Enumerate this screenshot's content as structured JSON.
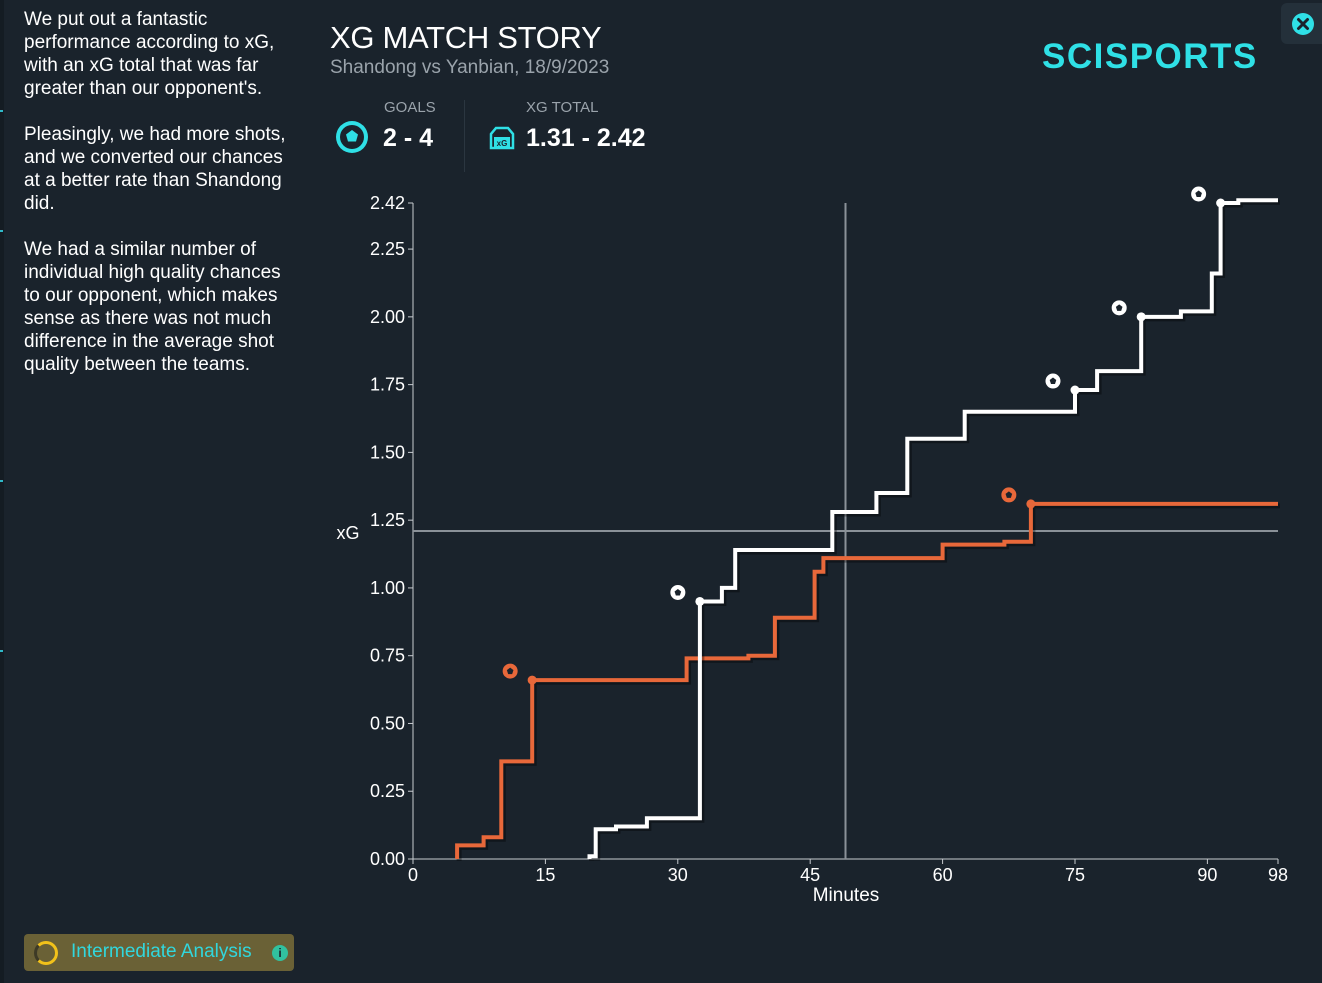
{
  "summary": {
    "paragraphs": [
      "We put out a fantastic performance according to xG, with an xG total that was far greater than our opponent's.",
      "Pleasingly, we had more shots, and we converted our chances at a better rate than Shandong did.",
      "We had a similar number of individual high quality chances to our opponent, which makes sense as there was not much difference in the average shot quality between the teams."
    ]
  },
  "header": {
    "title": "XG MATCH STORY",
    "subtitle": "Shandong vs Yanbian, 18/9/2023",
    "logo": "SCISPORTS"
  },
  "stats": {
    "goals_label": "GOALS",
    "goals_value": "2 - 4",
    "xg_label": "XG TOTAL",
    "xg_value": "1.31 - 2.42",
    "icons": [
      "soccer-ball-icon",
      "xg-goal-icon"
    ]
  },
  "badge": {
    "label": "Intermediate Analysis",
    "info": "i"
  },
  "colors": {
    "accent": "#2fe0e6",
    "home": "#e8683a",
    "away": "#ffffff",
    "background": "#1a232c"
  },
  "chart_data": {
    "type": "line",
    "step": true,
    "xlabel": "Minutes",
    "ylabel": "xG",
    "xlim": [
      0,
      98
    ],
    "ylim": [
      0,
      2.42
    ],
    "x_ticks": [
      0,
      15,
      30,
      45,
      60,
      75,
      90,
      98
    ],
    "y_ticks": [
      0,
      0.25,
      0.5,
      0.75,
      1.0,
      1.25,
      1.5,
      1.75,
      2.0,
      2.25,
      2.42
    ],
    "y_tick_labels": [
      "0.00",
      "0.25",
      "0.50",
      "0.75",
      "1.00",
      "1.25",
      "1.50",
      "1.75",
      "2.00",
      "2.25",
      "2.42"
    ],
    "halftime_minute": 49,
    "reference_xg": 1.21,
    "series": [
      {
        "name": "Shandong",
        "color": "#e8683a",
        "shots": [
          {
            "minute": 5,
            "xg": 0.05
          },
          {
            "minute": 8,
            "xg": 0.03
          },
          {
            "minute": 10,
            "xg": 0.28
          },
          {
            "minute": 13.5,
            "xg": 0.3
          },
          {
            "minute": 31,
            "xg": 0.08
          },
          {
            "minute": 38,
            "xg": 0.01
          },
          {
            "minute": 41,
            "xg": 0.14
          },
          {
            "minute": 45.5,
            "xg": 0.17
          },
          {
            "minute": 46.5,
            "xg": 0.05
          },
          {
            "minute": 60,
            "xg": 0.05
          },
          {
            "minute": 67,
            "xg": 0.01
          },
          {
            "minute": 70,
            "xg": 0.14
          }
        ],
        "goals": [
          13.5,
          70
        ],
        "final_xg": 1.31
      },
      {
        "name": "Yanbian",
        "color": "#ffffff",
        "shots": [
          {
            "minute": 20,
            "xg": 0.01
          },
          {
            "minute": 20.7,
            "xg": 0.1
          },
          {
            "minute": 23,
            "xg": 0.01
          },
          {
            "minute": 26.5,
            "xg": 0.03
          },
          {
            "minute": 32.5,
            "xg": 0.8
          },
          {
            "minute": 35,
            "xg": 0.05
          },
          {
            "minute": 36.5,
            "xg": 0.14
          },
          {
            "minute": 47.5,
            "xg": 0.14
          },
          {
            "minute": 52.5,
            "xg": 0.07
          },
          {
            "minute": 56,
            "xg": 0.2
          },
          {
            "minute": 62.5,
            "xg": 0.1
          },
          {
            "minute": 75,
            "xg": 0.08
          },
          {
            "minute": 77.5,
            "xg": 0.07
          },
          {
            "minute": 82.5,
            "xg": 0.2
          },
          {
            "minute": 87,
            "xg": 0.02
          },
          {
            "minute": 90.5,
            "xg": 0.14
          },
          {
            "minute": 91.5,
            "xg": 0.26
          },
          {
            "minute": 93.5,
            "xg": 0.01
          }
        ],
        "goals": [
          32.5,
          75,
          82.5,
          91.5
        ],
        "final_xg": 2.42
      }
    ]
  }
}
